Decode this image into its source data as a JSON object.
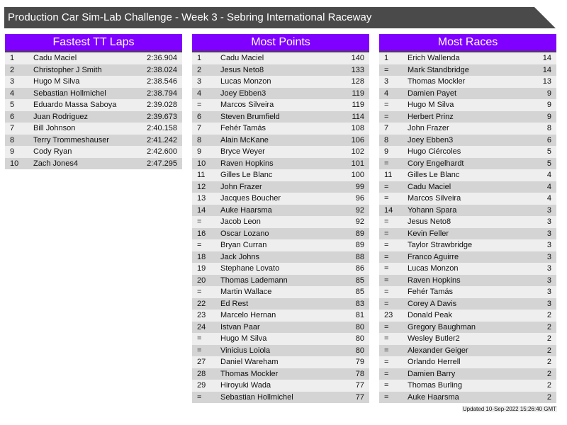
{
  "title": "Production Car Sim-Lab Challenge - Week 3 - Sebring International Raceway",
  "updated": "Updated 10-Sep-2022 15:26:40 GMT",
  "colors": {
    "header": "#8000ff",
    "title_bar": "#4a4a4a"
  },
  "tables": [
    {
      "title": "Fastest TT Laps",
      "rows": [
        [
          "1",
          "Cadu Maciel",
          "2:36.904"
        ],
        [
          "2",
          "Christopher J Smith",
          "2:38.024"
        ],
        [
          "3",
          "Hugo M Silva",
          "2:38.546"
        ],
        [
          "4",
          "Sebastian Hollmichel",
          "2:38.794"
        ],
        [
          "5",
          "Eduardo Massa Saboya",
          "2:39.028"
        ],
        [
          "6",
          "Juan Rodriguez",
          "2:39.673"
        ],
        [
          "7",
          "Bill Johnson",
          "2:40.158"
        ],
        [
          "8",
          "Terry Trommeshauser",
          "2:41.242"
        ],
        [
          "9",
          "Cody Ryan",
          "2:42.600"
        ],
        [
          "10",
          "Zach Jones4",
          "2:47.295"
        ]
      ]
    },
    {
      "title": "Most Points",
      "rows": [
        [
          "1",
          "Cadu Maciel",
          "140"
        ],
        [
          "2",
          "Jesus Neto8",
          "133"
        ],
        [
          "3",
          "Lucas Monzon",
          "128"
        ],
        [
          "4",
          "Joey Ebben3",
          "119"
        ],
        [
          "=",
          "Marcos Silveira",
          "119"
        ],
        [
          "6",
          "Steven Brumfield",
          "114"
        ],
        [
          "7",
          "Fehér Tamás",
          "108"
        ],
        [
          "8",
          "Alain McKane",
          "106"
        ],
        [
          "9",
          "Bryce Weyer",
          "102"
        ],
        [
          "10",
          "Raven Hopkins",
          "101"
        ],
        [
          "11",
          "Gilles Le Blanc",
          "100"
        ],
        [
          "12",
          "John Frazer",
          "99"
        ],
        [
          "13",
          "Jacques Boucher",
          "96"
        ],
        [
          "14",
          "Auke Haarsma",
          "92"
        ],
        [
          "=",
          "Jacob Leon",
          "92"
        ],
        [
          "16",
          "Oscar Lozano",
          "89"
        ],
        [
          "=",
          "Bryan Curran",
          "89"
        ],
        [
          "18",
          "Jack Johns",
          "88"
        ],
        [
          "19",
          "Stephane Lovato",
          "86"
        ],
        [
          "20",
          "Thomas Lademann",
          "85"
        ],
        [
          "=",
          "Martin Wallace",
          "85"
        ],
        [
          "22",
          "Ed Rest",
          "83"
        ],
        [
          "23",
          "Marcelo Hernan",
          "81"
        ],
        [
          "24",
          "Istvan Paar",
          "80"
        ],
        [
          "=",
          "Hugo M Silva",
          "80"
        ],
        [
          "=",
          "Vinicius Loiola",
          "80"
        ],
        [
          "27",
          "Daniel Wareham",
          "79"
        ],
        [
          "28",
          "Thomas Mockler",
          "78"
        ],
        [
          "29",
          "Hiroyuki Wada",
          "77"
        ],
        [
          "=",
          "Sebastian Hollmichel",
          "77"
        ]
      ]
    },
    {
      "title": "Most Races",
      "rows": [
        [
          "1",
          "Erich Wallenda",
          "14"
        ],
        [
          "=",
          "Mark Standbridge",
          "14"
        ],
        [
          "3",
          "Thomas Mockler",
          "13"
        ],
        [
          "4",
          "Damien Payet",
          "9"
        ],
        [
          "=",
          "Hugo M Silva",
          "9"
        ],
        [
          "=",
          "Herbert Prinz",
          "9"
        ],
        [
          "7",
          "John Frazer",
          "8"
        ],
        [
          "8",
          "Joey Ebben3",
          "6"
        ],
        [
          "9",
          "Hugo Ciércoles",
          "5"
        ],
        [
          "=",
          "Cory Engelhardt",
          "5"
        ],
        [
          "11",
          "Gilles Le Blanc",
          "4"
        ],
        [
          "=",
          "Cadu Maciel",
          "4"
        ],
        [
          "=",
          "Marcos Silveira",
          "4"
        ],
        [
          "14",
          "Yohann Spara",
          "3"
        ],
        [
          "=",
          "Jesus Neto8",
          "3"
        ],
        [
          "=",
          "Kevin Feller",
          "3"
        ],
        [
          "=",
          "Taylor Strawbridge",
          "3"
        ],
        [
          "=",
          "Franco Aguirre",
          "3"
        ],
        [
          "=",
          "Lucas Monzon",
          "3"
        ],
        [
          "=",
          "Raven Hopkins",
          "3"
        ],
        [
          "=",
          "Fehér Tamás",
          "3"
        ],
        [
          "=",
          "Corey A Davis",
          "3"
        ],
        [
          "23",
          "Donald Peak",
          "2"
        ],
        [
          "=",
          "Gregory Baughman",
          "2"
        ],
        [
          "=",
          "Wesley Butler2",
          "2"
        ],
        [
          "=",
          "Alexander Geiger",
          "2"
        ],
        [
          "=",
          "Orlando Herrell",
          "2"
        ],
        [
          "=",
          "Damien Barry",
          "2"
        ],
        [
          "=",
          "Thomas Burling",
          "2"
        ],
        [
          "=",
          "Auke Haarsma",
          "2"
        ]
      ]
    }
  ]
}
